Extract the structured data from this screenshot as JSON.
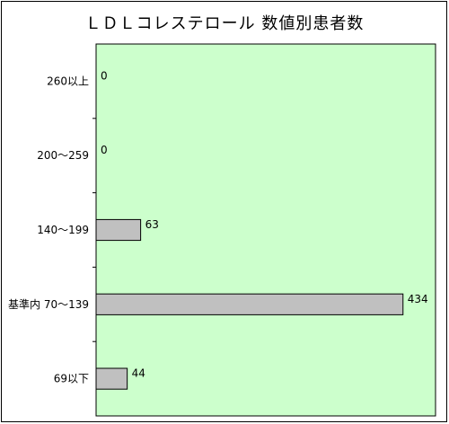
{
  "chart_data": {
    "type": "bar",
    "orientation": "horizontal",
    "title": "ＬＤＬコレステロール 数値別患者数",
    "categories": [
      "260以上",
      "200～259",
      "140～199",
      "基準内 70～139",
      "69以下"
    ],
    "values": [
      0,
      0,
      63,
      434,
      44
    ],
    "xlim": [
      0,
      480
    ],
    "grid": false,
    "colors": {
      "plot_bg": "#ccffcc",
      "bar_fill": "#c0c0c0",
      "bar_stroke": "#000000"
    }
  }
}
